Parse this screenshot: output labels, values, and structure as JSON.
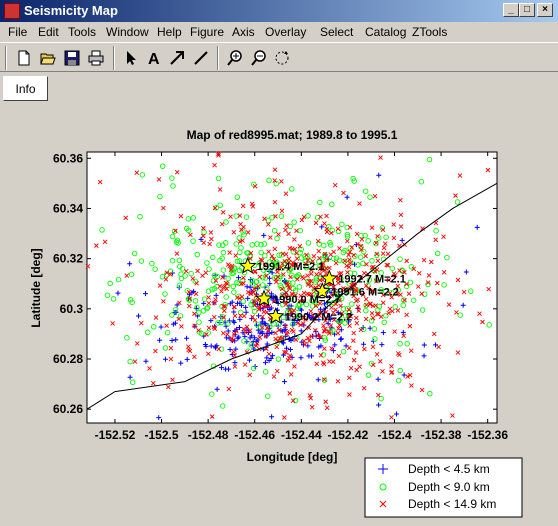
{
  "window": {
    "title": "Seismicity Map"
  },
  "menu": [
    "File",
    "Edit",
    "Tools",
    "Window",
    "Help",
    "Figure",
    "Axis",
    "Overlay",
    "Select",
    "Catalog",
    "ZTools"
  ],
  "toolbar": {
    "items": [
      "new-file-icon",
      "open-folder-icon",
      "save-icon",
      "print-icon",
      "pointer-icon",
      "text-tool-icon",
      "arrow-tool-icon",
      "line-tool-icon",
      "zoom-in-icon",
      "zoom-out-icon",
      "rotate-icon"
    ]
  },
  "info_button": {
    "label": "Info"
  },
  "chart_data": {
    "type": "scatter",
    "title": "Map of   red8995.mat; 1989.8 to 1995.1",
    "xlabel": "Longitude [deg]",
    "ylabel": "Latitude [deg]",
    "xlim": [
      -152.532,
      -152.356
    ],
    "ylim": [
      60.2545,
      60.3625
    ],
    "xticks": [
      "-152.52",
      "-152.5",
      "-152.48",
      "-152.46",
      "-152.44",
      "-152.42",
      "-152.4",
      "-152.38",
      "-152.36"
    ],
    "yticks": [
      "60.26",
      "60.28",
      "60.3",
      "60.32",
      "60.34",
      "60.36"
    ],
    "legend_position": "bottom-right",
    "series": [
      {
        "name": "Depth < 4.5 km",
        "marker": "+",
        "color": "#0000ff",
        "center": [
          -152.452,
          60.295
        ],
        "spread": [
          0.02,
          0.009
        ]
      },
      {
        "name": "Depth < 9.0 km",
        "marker": "o",
        "color": "#00ff00",
        "center": [
          -152.45,
          60.312
        ],
        "spread": [
          0.028,
          0.013
        ]
      },
      {
        "name": "Depth < 14.9 km",
        "marker": "x",
        "color": "#ff0000",
        "center": [
          -152.44,
          60.305
        ],
        "spread": [
          0.028,
          0.017
        ]
      }
    ],
    "stars": [
      {
        "x": -152.463,
        "y": 60.317,
        "label": "1991.4 M=2.1"
      },
      {
        "x": -152.428,
        "y": 60.312,
        "label": "1992.7 M=2.1"
      },
      {
        "x": -152.431,
        "y": 60.307,
        "label": "1991.6 M=2.2"
      },
      {
        "x": -152.456,
        "y": 60.304,
        "label": "1990.0 M=2.7"
      },
      {
        "x": -152.451,
        "y": 60.297,
        "label": "1990.2 M=2.2"
      }
    ],
    "fault_line": [
      [
        -152.532,
        60.26
      ],
      [
        -152.52,
        60.267
      ],
      [
        -152.49,
        60.271
      ],
      [
        -152.47,
        60.28
      ],
      [
        -152.44,
        60.29
      ],
      [
        -152.43,
        60.3
      ],
      [
        -152.41,
        60.315
      ],
      [
        -152.39,
        60.33
      ],
      [
        -152.375,
        60.34
      ],
      [
        -152.356,
        60.35
      ]
    ]
  }
}
